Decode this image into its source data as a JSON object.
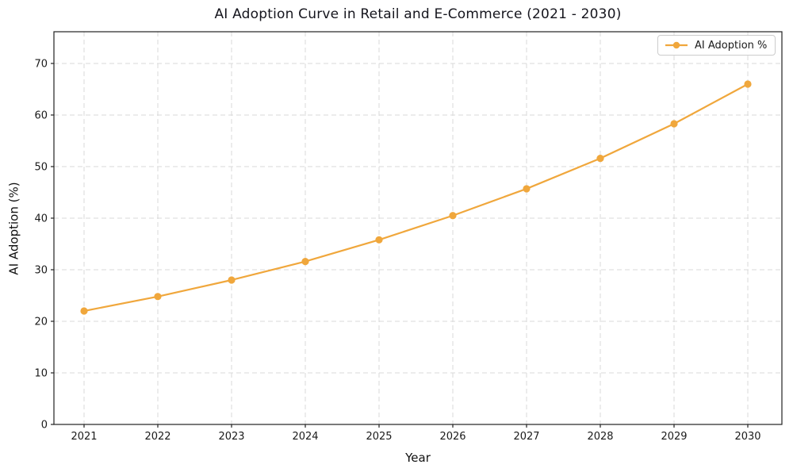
{
  "title": "AI Adoption Curve in Retail and E-Commerce (2021 - 2030)",
  "chart_data": {
    "type": "line",
    "title": "AI Adoption Curve in Retail and E-Commerce (2021 - 2030)",
    "x": [
      2021,
      2022,
      2023,
      2024,
      2025,
      2026,
      2027,
      2028,
      2029,
      2030
    ],
    "series": [
      {
        "name": "AI Adoption %",
        "values": [
          22.0,
          24.8,
          28.0,
          31.6,
          35.8,
          40.5,
          45.7,
          51.6,
          58.3,
          66.0
        ],
        "color": "#f0a73c",
        "marker": "circle",
        "line_style": "solid"
      }
    ],
    "xlabel": "Year",
    "ylabel": "AI Adoption (%)",
    "ylim": [
      0,
      76.15
    ],
    "yticks": [
      0,
      10,
      20,
      30,
      40,
      50,
      60,
      70
    ],
    "grid": true,
    "grid_style": "dashed",
    "legend_position": "upper right"
  },
  "legend": {
    "label": "AI Adoption %"
  },
  "colors": {
    "series": "#f0a73c",
    "grid": "#d8d8d8",
    "frame": "#222222",
    "tick_text": "#1a1a1a"
  }
}
